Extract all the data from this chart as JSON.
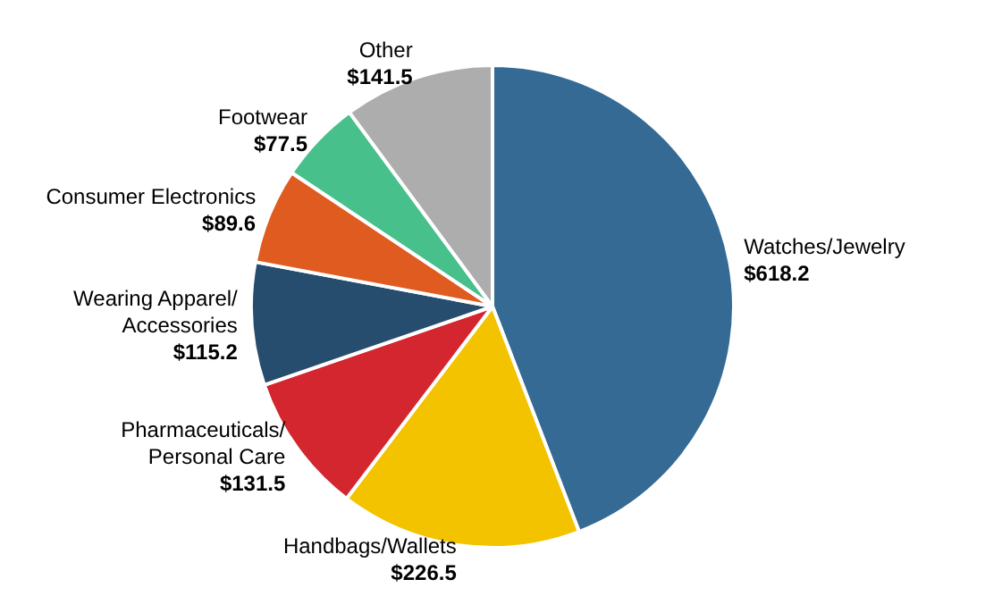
{
  "chart_data": {
    "type": "pie",
    "categories": [
      "Watches/Jewelry",
      "Handbags/Wallets",
      "Pharmaceuticals/\nPersonal Care",
      "Wearing Apparel/\nAccessories",
      "Consumer Electronics",
      "Footwear",
      "Other"
    ],
    "values": [
      618.2,
      226.5,
      131.5,
      115.2,
      89.6,
      77.5,
      141.5
    ],
    "value_labels": [
      "$618.2",
      "$226.5",
      "$131.5",
      "$115.2",
      "$89.6",
      "$77.5",
      "$141.5"
    ],
    "colors": [
      "#346a93",
      "#f3c300",
      "#d3262e",
      "#274d6e",
      "#e05b20",
      "#48c08c",
      "#adadad"
    ],
    "legend": false
  }
}
